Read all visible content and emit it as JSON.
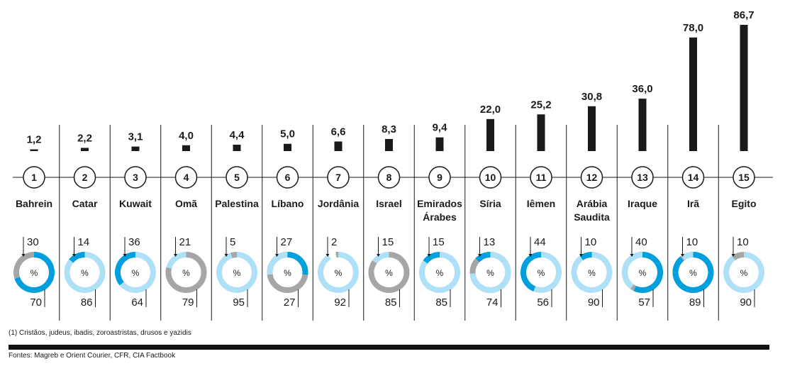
{
  "chart_data": {
    "type": "bar",
    "categories": [
      {
        "rank": "1",
        "lines": [
          "Bahrein"
        ]
      },
      {
        "rank": "2",
        "lines": [
          "Catar"
        ]
      },
      {
        "rank": "3",
        "lines": [
          "Kuwait"
        ]
      },
      {
        "rank": "4",
        "lines": [
          "Omã"
        ]
      },
      {
        "rank": "5",
        "lines": [
          "Palestina"
        ]
      },
      {
        "rank": "6",
        "lines": [
          "Líbano"
        ]
      },
      {
        "rank": "7",
        "lines": [
          "Jordânia"
        ]
      },
      {
        "rank": "8",
        "lines": [
          "Israel"
        ]
      },
      {
        "rank": "9",
        "lines": [
          "Emirados",
          "Árabes"
        ]
      },
      {
        "rank": "10",
        "lines": [
          "Síria"
        ]
      },
      {
        "rank": "11",
        "lines": [
          "Iêmen"
        ]
      },
      {
        "rank": "12",
        "lines": [
          "Arábia",
          "Saudita"
        ]
      },
      {
        "rank": "13",
        "lines": [
          "Iraque"
        ]
      },
      {
        "rank": "14",
        "lines": [
          "Irã"
        ]
      },
      {
        "rank": "15",
        "lines": [
          "Egito"
        ]
      }
    ],
    "values": [
      1.2,
      2.2,
      3.1,
      4.0,
      4.4,
      5.0,
      6.6,
      8.3,
      9.4,
      22.0,
      25.2,
      30.8,
      36.0,
      78.0,
      86.7
    ],
    "value_labels": [
      "1,2",
      "2,2",
      "3,1",
      "4,0",
      "4,4",
      "5,0",
      "6,6",
      "8,3",
      "9,4",
      "22,0",
      "25,2",
      "30,8",
      "36,0",
      "78,0",
      "86,7"
    ],
    "ylim": [
      0,
      86.7
    ],
    "donuts": [
      {
        "top": "30",
        "bottom": "70",
        "top_value": 30,
        "bottom_value": 70,
        "top_color": "#a6a6a6",
        "bottom_color": "#009fde"
      },
      {
        "top": "14",
        "bottom": "86",
        "top_value": 14,
        "bottom_value": 86,
        "top_color": "#009fde",
        "bottom_color": "#aee0f7"
      },
      {
        "top": "36",
        "bottom": "64",
        "top_value": 36,
        "bottom_value": 64,
        "top_color": "#009fde",
        "bottom_color": "#aee0f7"
      },
      {
        "top": "21",
        "bottom": "79",
        "top_value": 21,
        "bottom_value": 79,
        "top_color": "#aee0f7",
        "bottom_color": "#a6a6a6"
      },
      {
        "top": "5",
        "bottom": "95",
        "top_value": 5,
        "bottom_value": 95,
        "top_color": "#a6a6a6",
        "bottom_color": "#aee0f7"
      },
      {
        "top": "27",
        "bottom": "27",
        "top_value": 27,
        "bottom_value": 27,
        "top_color": "#aee0f7",
        "bottom_color": "#009fde",
        "rest_color": "#a6a6a6"
      },
      {
        "top": "2",
        "bottom": "92",
        "top_value": 2,
        "bottom_value": 92,
        "top_color": "#a6a6a6",
        "bottom_color": "#aee0f7"
      },
      {
        "top": "15",
        "bottom": "85",
        "top_value": 15,
        "bottom_value": 85,
        "top_color": "#aee0f7",
        "bottom_color": "#a6a6a6"
      },
      {
        "top": "15",
        "bottom": "85",
        "top_value": 15,
        "bottom_value": 85,
        "top_color": "#009fde",
        "bottom_color": "#aee0f7"
      },
      {
        "top": "13",
        "bottom": "74",
        "top_value": 13,
        "bottom_value": 74,
        "top_color": "#009fde",
        "bottom_color": "#aee0f7",
        "rest_color": "#a6a6a6"
      },
      {
        "top": "44",
        "bottom": "56",
        "top_value": 44,
        "bottom_value": 56,
        "top_color": "#009fde",
        "bottom_color": "#aee0f7"
      },
      {
        "top": "10",
        "bottom": "90",
        "top_value": 10,
        "bottom_value": 90,
        "top_color": "#009fde",
        "bottom_color": "#aee0f7"
      },
      {
        "top": "40",
        "bottom": "57",
        "top_value": 40,
        "bottom_value": 57,
        "top_color": "#aee0f7",
        "bottom_color": "#009fde",
        "rest_color": "#a6a6a6"
      },
      {
        "top": "10",
        "bottom": "89",
        "top_value": 10,
        "bottom_value": 89,
        "top_color": "#aee0f7",
        "bottom_color": "#009fde",
        "rest_color": "#a6a6a6"
      },
      {
        "top": "10",
        "bottom": "90",
        "top_value": 10,
        "bottom_value": 90,
        "top_color": "#a6a6a6",
        "bottom_color": "#aee0f7"
      }
    ],
    "percent_sign": "%",
    "colors": {
      "bar": "#1a1a1a",
      "light_blue": "#aee0f7",
      "blue": "#009fde",
      "gray": "#a6a6a6"
    }
  },
  "footnote": "(1) Cristãos, judeus, ibadis, zoroastristas, drusos e yazidis",
  "source": "Fontes: Magreb e Orient Courier, CFR, CIA Factbook"
}
